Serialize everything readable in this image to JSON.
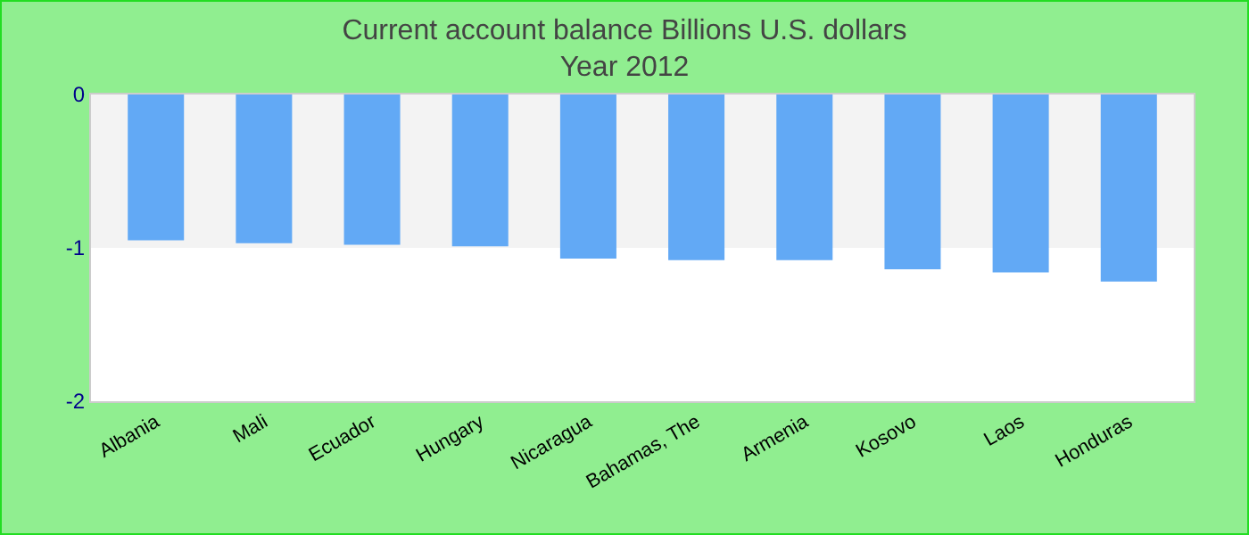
{
  "chart_data": {
    "type": "bar",
    "title": "Current account balance Billions U.S. dollars",
    "subtitle": "Year 2012",
    "categories": [
      "Albania",
      "Mali",
      "Ecuador",
      "Hungary",
      "Nicaragua",
      "Bahamas, The",
      "Armenia",
      "Kosovo",
      "Laos",
      "Honduras"
    ],
    "values": [
      -0.95,
      -0.97,
      -0.98,
      -0.99,
      -1.07,
      -1.08,
      -1.08,
      -1.14,
      -1.16,
      -1.22
    ],
    "color": "#62a9f5",
    "ylim": [
      -2,
      0
    ],
    "yticks": [
      0,
      -1,
      -2
    ],
    "grid": false,
    "bands": [
      {
        "axis": "y",
        "from": -1,
        "to": 0,
        "color": "#f3f3f3"
      }
    ]
  }
}
